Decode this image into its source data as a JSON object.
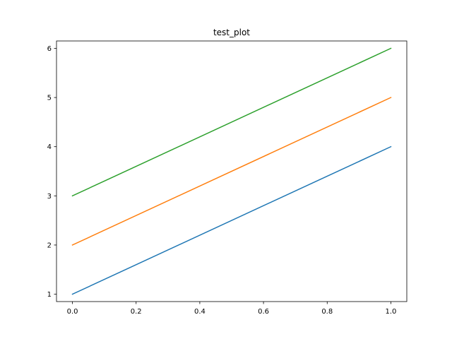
{
  "chart_data": {
    "type": "line",
    "title": "test_plot",
    "xlabel": "",
    "ylabel": "",
    "xlim": [
      -0.05,
      1.05
    ],
    "ylim": [
      0.85,
      6.15
    ],
    "x_ticks": [
      0.0,
      0.2,
      0.4,
      0.6,
      0.8,
      1.0
    ],
    "x_tick_labels": [
      "0.0",
      "0.2",
      "0.4",
      "0.6",
      "0.8",
      "1.0"
    ],
    "y_ticks": [
      1,
      2,
      3,
      4,
      5,
      6
    ],
    "y_tick_labels": [
      "1",
      "2",
      "3",
      "4",
      "5",
      "6"
    ],
    "grid": false,
    "legend": false,
    "x": [
      0.0,
      1.0
    ],
    "series": [
      {
        "values": [
          1,
          4
        ],
        "color": "#1f77b4"
      },
      {
        "values": [
          2,
          5
        ],
        "color": "#ff7f0e"
      },
      {
        "values": [
          3,
          6
        ],
        "color": "#2ca02c"
      }
    ]
  }
}
